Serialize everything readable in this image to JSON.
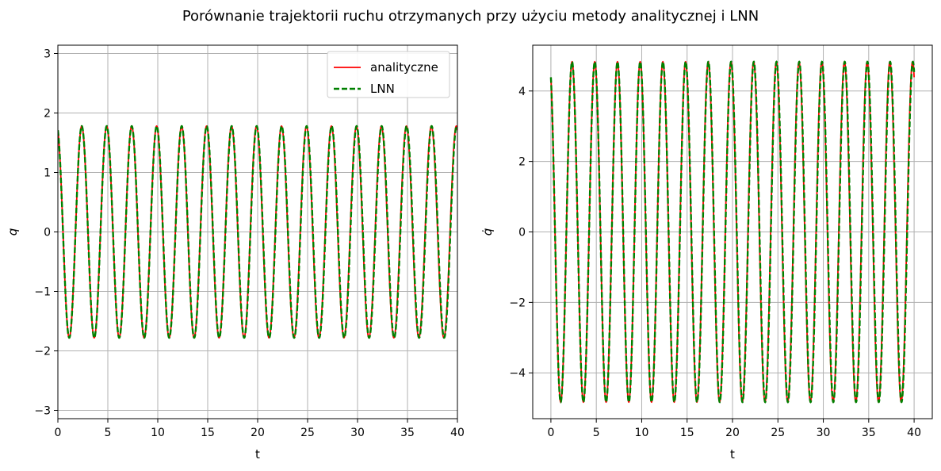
{
  "figure": {
    "title": "Porównanie trajektorii ruchu otrzymanych przy użyciu metody analitycznej i LNN"
  },
  "chart_data": [
    {
      "type": "line",
      "xlabel": "t",
      "ylabel": "q",
      "xlim": [
        0,
        40
      ],
      "ylim": [
        -3.14,
        3.14
      ],
      "xticks": [
        0,
        5,
        10,
        15,
        20,
        25,
        30,
        35,
        40
      ],
      "xtick_labels": [
        "0",
        "5",
        "10",
        "15",
        "20",
        "25",
        "30",
        "35",
        "40"
      ],
      "yticks": [
        -3,
        -2,
        -1,
        0,
        1,
        2,
        3
      ],
      "ytick_labels": [
        "−3",
        "−2",
        "−1",
        "0",
        "1",
        "2",
        "3"
      ],
      "grid": true,
      "legend": "top-right",
      "t_range": [
        0,
        40
      ],
      "series": [
        {
          "name": "analityczne",
          "color": "#ff0000",
          "style": "solid",
          "amplitude": 1.78,
          "period": 2.5,
          "phase": 0.28
        },
        {
          "name": "LNN",
          "color": "#008000",
          "style": "dashed",
          "amplitude": 1.78,
          "period": 2.502,
          "phase": 0.28
        }
      ]
    },
    {
      "type": "line",
      "xlabel": "t",
      "ylabel": "q̇",
      "xlim": [
        -2,
        42
      ],
      "ylim": [
        -5.3,
        5.3
      ],
      "xticks": [
        0,
        5,
        10,
        15,
        20,
        25,
        30,
        35,
        40
      ],
      "xtick_labels": [
        "0",
        "5",
        "10",
        "15",
        "20",
        "25",
        "30",
        "35",
        "40"
      ],
      "yticks": [
        -4,
        -2,
        0,
        2,
        4
      ],
      "ytick_labels": [
        "−4",
        "−2",
        "0",
        "2",
        "4"
      ],
      "grid": true,
      "legend": "none",
      "t_range": [
        0,
        40
      ],
      "series": [
        {
          "name": "analityczne",
          "color": "#ff0000",
          "style": "solid",
          "amplitude": 4.83,
          "period": 2.5,
          "phase": 0.43
        },
        {
          "name": "LNN",
          "color": "#008000",
          "style": "dashed",
          "amplitude": 4.83,
          "period": 2.502,
          "phase": 0.43
        }
      ]
    }
  ]
}
